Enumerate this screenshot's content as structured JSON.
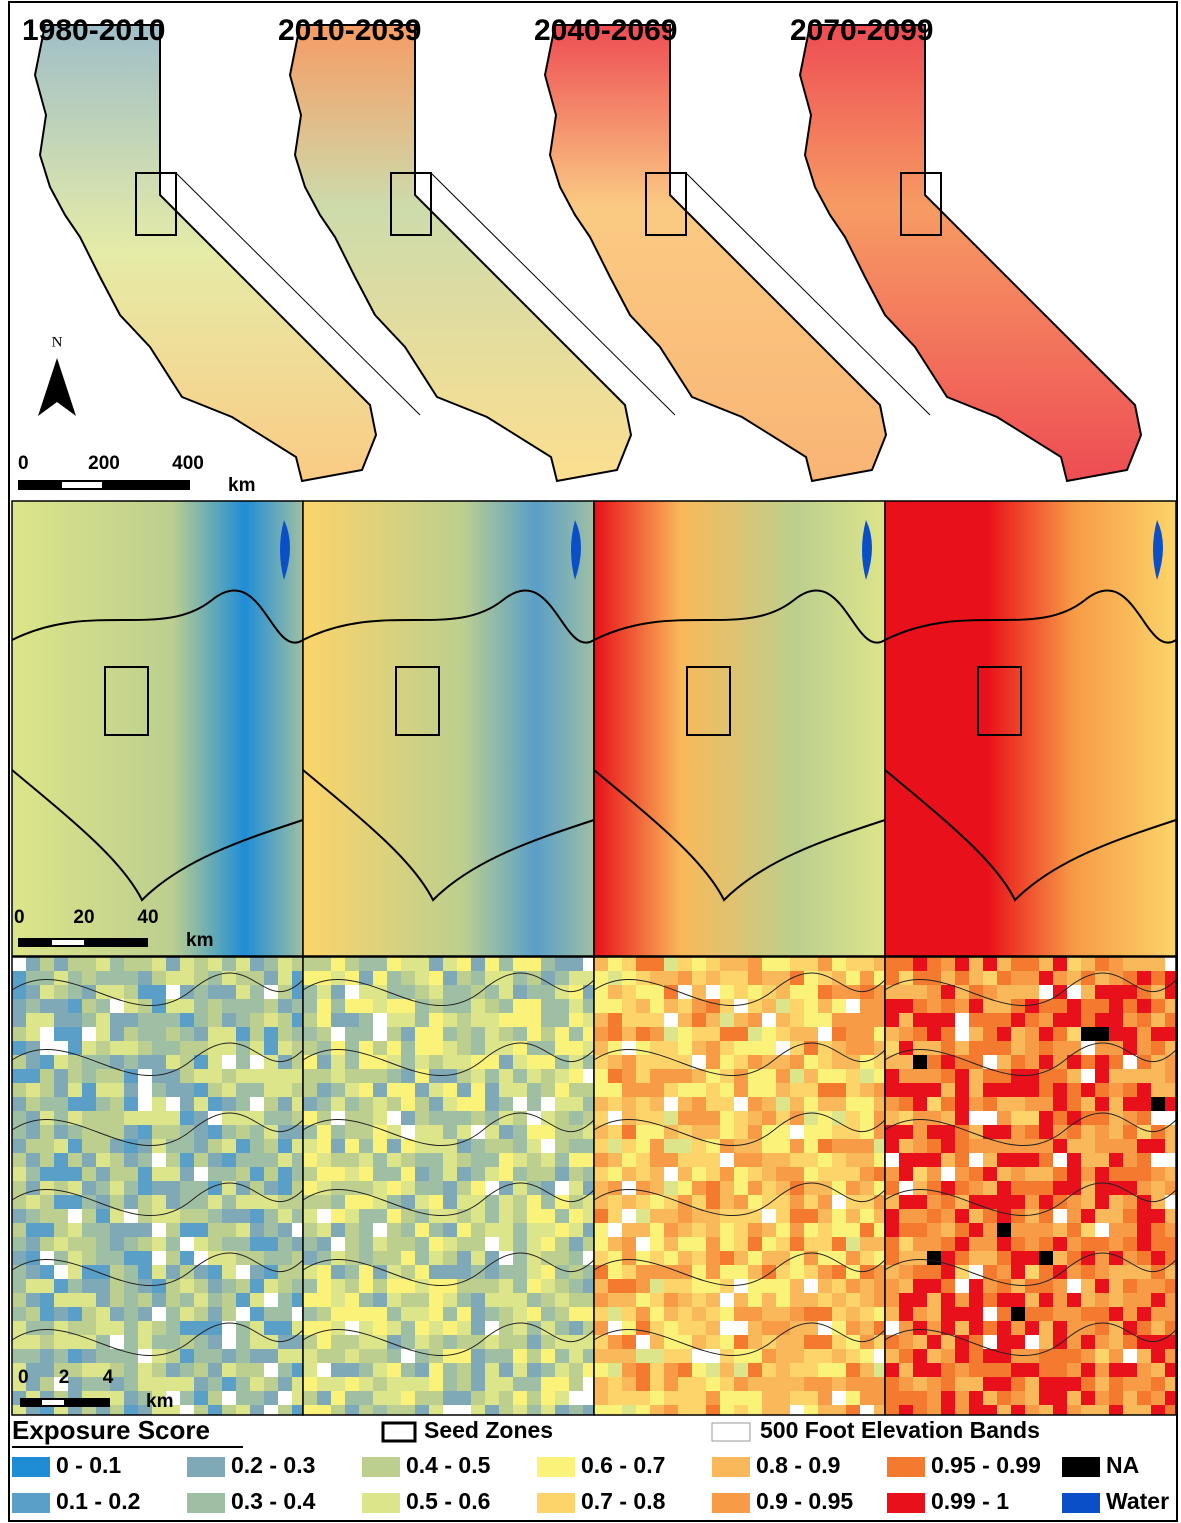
{
  "periods": [
    "1980-2010",
    "2010-2039",
    "2040-2069",
    "2070-2099"
  ],
  "north_label": "N",
  "scale_bars": [
    {
      "labels": [
        "0",
        "200",
        "400"
      ],
      "unit": "km"
    },
    {
      "labels": [
        "0",
        "20",
        "40"
      ],
      "unit": "km"
    },
    {
      "labels": [
        "0",
        "2",
        "4"
      ],
      "unit": "km"
    }
  ],
  "legend": {
    "title": "Exposure Score",
    "seed_zones": "Seed Zones",
    "elevation_bands": "500 Foot Elevation Bands",
    "items": [
      {
        "label": "0 - 0.1",
        "color": "#1f8dd6"
      },
      {
        "label": "0.2 - 0.3",
        "color": "#7fa9b6"
      },
      {
        "label": "0.4 - 0.5",
        "color": "#bccf8f"
      },
      {
        "label": "0.6 - 0.7",
        "color": "#fbf27a"
      },
      {
        "label": "0.8 - 0.9",
        "color": "#f9b95a"
      },
      {
        "label": "0.95 - 0.99",
        "color": "#f47a30"
      },
      {
        "label": "NA",
        "color": "#000000"
      },
      {
        "label": "0.1 - 0.2",
        "color": "#5a9fc8"
      },
      {
        "label": "0.3 - 0.4",
        "color": "#9fbfa4"
      },
      {
        "label": "0.5 - 0.6",
        "color": "#dde58a"
      },
      {
        "label": "0.7 - 0.8",
        "color": "#fcd46a"
      },
      {
        "label": "0.9 - 0.95",
        "color": "#f79b46"
      },
      {
        "label": "0.99 - 1",
        "color": "#e8101a"
      },
      {
        "label": "Water",
        "color": "#0b4fc8"
      }
    ]
  }
}
